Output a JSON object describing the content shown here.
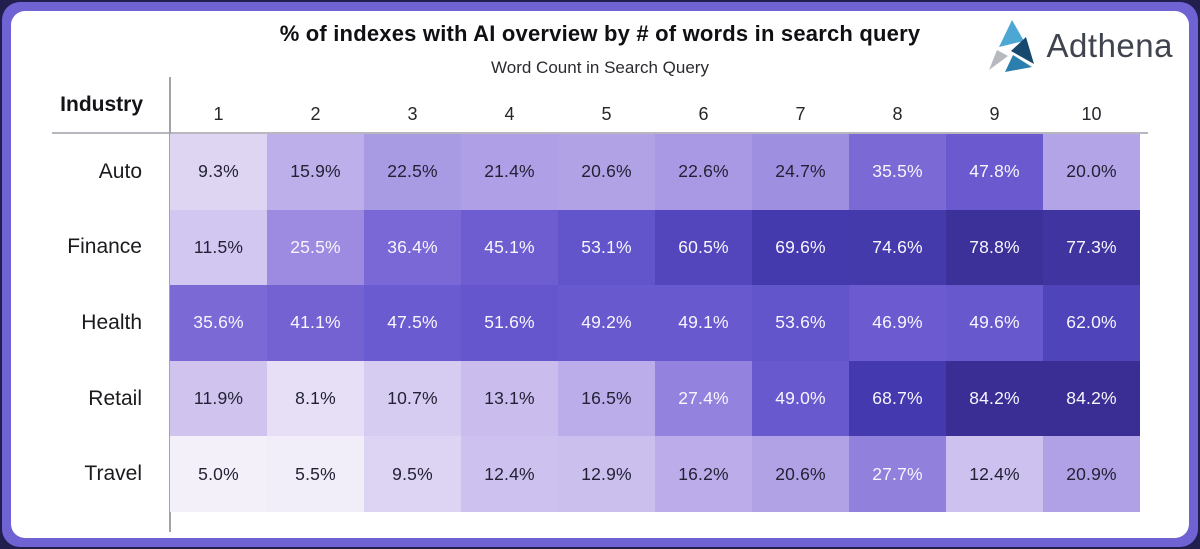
{
  "frame": {
    "outer_background": "#221f4e",
    "border_color": "#6f62d3",
    "card_background": "#ffffff"
  },
  "header": {
    "title": "% of indexes with AI overview by # of words in search query",
    "subtitle": "Word Count in Search Query"
  },
  "logo": {
    "text": "Adthena",
    "colors": [
      "#4da7d4",
      "#17496f",
      "#2a7fae",
      "#b6b9be"
    ]
  },
  "chart_data": {
    "type": "heatmap",
    "title": "% of indexes with AI overview by # of words in search query",
    "xlabel": "Word Count in Search Query",
    "ylabel": "Industry",
    "row_label_header": "Industry",
    "columns": [
      "1",
      "2",
      "3",
      "4",
      "5",
      "6",
      "7",
      "8",
      "9",
      "10"
    ],
    "rows": [
      "Auto",
      "Finance",
      "Health",
      "Retail",
      "Travel"
    ],
    "values_pct": [
      [
        9.3,
        15.9,
        22.5,
        21.4,
        20.6,
        22.6,
        24.7,
        35.5,
        47.8,
        20.0
      ],
      [
        11.5,
        25.5,
        36.4,
        45.1,
        53.1,
        60.5,
        69.6,
        74.6,
        78.8,
        77.3
      ],
      [
        35.6,
        41.1,
        47.5,
        51.6,
        49.2,
        49.1,
        53.6,
        46.9,
        49.6,
        62.0
      ],
      [
        11.9,
        8.1,
        10.7,
        13.1,
        16.5,
        27.4,
        49.0,
        68.7,
        84.2,
        84.2
      ],
      [
        5.0,
        5.5,
        9.5,
        12.4,
        12.9,
        16.2,
        20.6,
        27.7,
        12.4,
        20.9
      ]
    ],
    "value_suffix": "%",
    "color_scale": {
      "stops": [
        [
          5,
          "#f3f0fa"
        ],
        [
          8,
          "#e7e0f6"
        ],
        [
          10,
          "#d9cff2"
        ],
        [
          13,
          "#cabeee"
        ],
        [
          16,
          "#bcaeea"
        ],
        [
          21,
          "#b0a1e6"
        ],
        [
          25,
          "#9e8de1"
        ],
        [
          28,
          "#9080dd"
        ],
        [
          36,
          "#7a68d6"
        ],
        [
          47,
          "#6c5bd0"
        ],
        [
          54,
          "#6154cb"
        ],
        [
          61,
          "#5245bc"
        ],
        [
          69,
          "#4539ae"
        ],
        [
          75,
          "#453aac"
        ],
        [
          79,
          "#3c3098"
        ],
        [
          84.2,
          "#3a2e95"
        ]
      ],
      "light_text_threshold": 25,
      "dark_text": "#232135",
      "light_text": "#f7f5fd"
    }
  }
}
